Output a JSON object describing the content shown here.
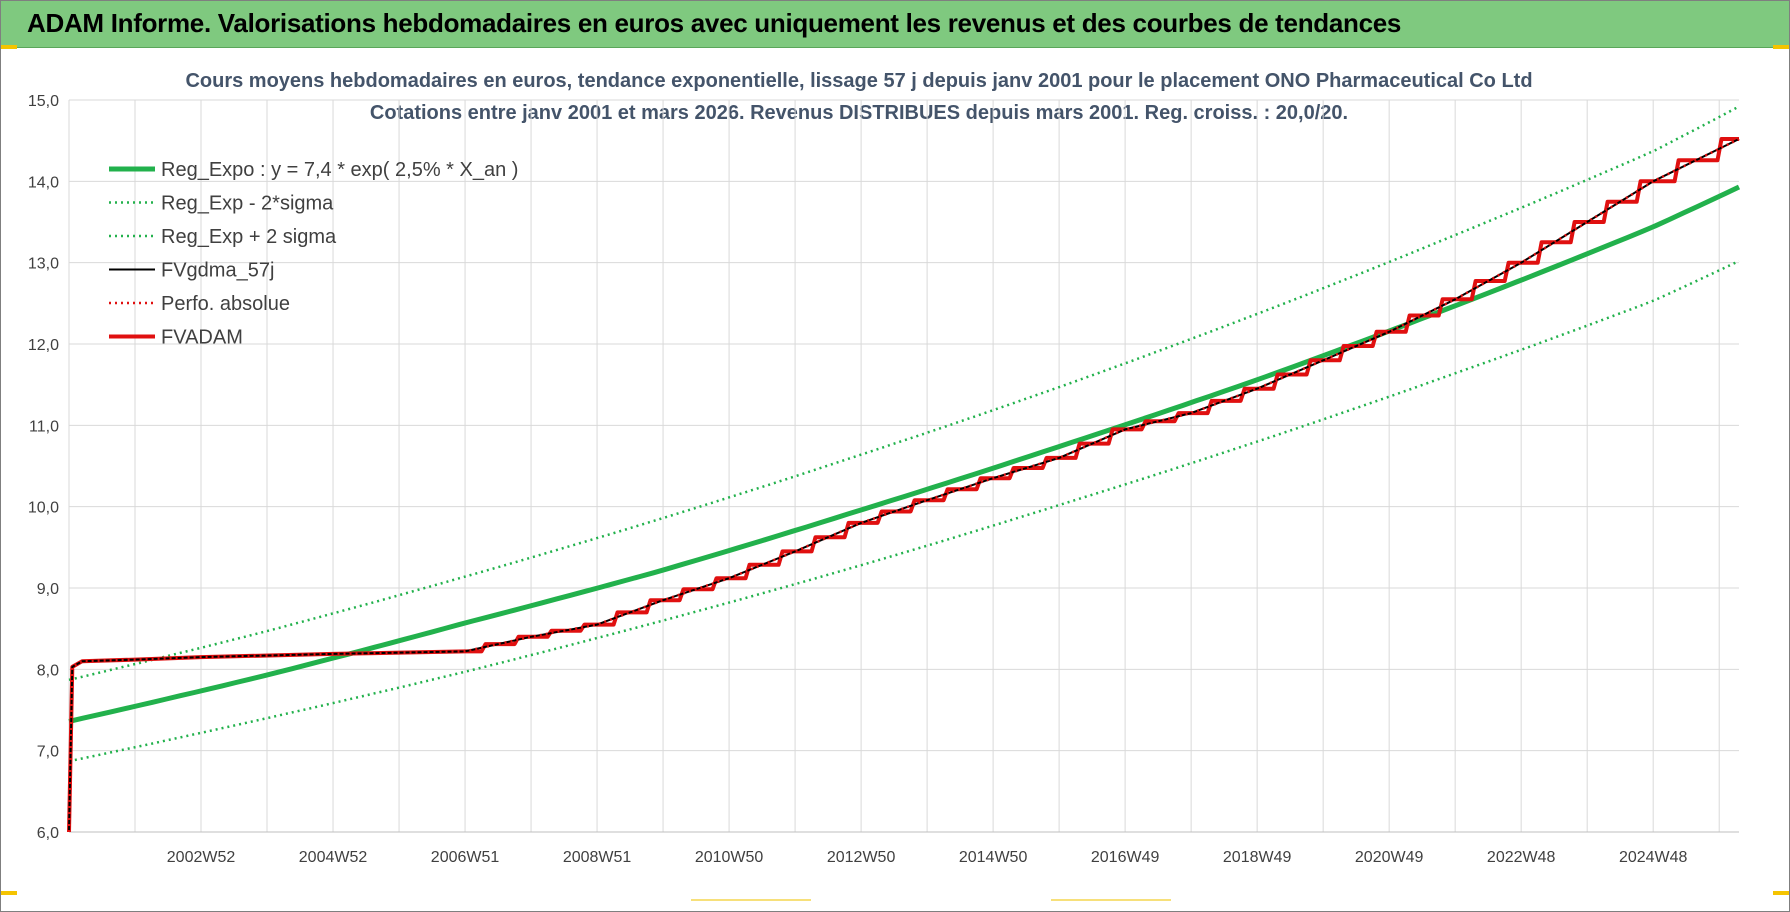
{
  "banner": {
    "title": "ADAM Informe. Valorisations hebdomadaires en euros avec uniquement les revenus et des courbes de tendances"
  },
  "colors": {
    "banner": "#7fc97f",
    "reg_expo": "#22b14c",
    "sigma": "#22b14c",
    "fvgdma": "#000000",
    "perfo": "#e01010",
    "fvadam": "#e01010",
    "grid": "#d9d9d9"
  },
  "chart_data": {
    "type": "line",
    "title": "Cours moyens hebdomadaires en euros, tendance exponentielle, lissage 57 j depuis janv 2001  pour le placement ONO Pharmaceutical Co Ltd",
    "subtitle": "Cotations entre janv 2001 et mars 2026. Revenus DISTRIBUES depuis mars 2001. Reg. croiss. : 20,0/20.",
    "xlabel": "",
    "ylabel": "",
    "ylim": [
      6,
      15
    ],
    "xlim": [
      2001.0,
      2026.3
    ],
    "yticks": [
      "6,0",
      "7,0",
      "8,0",
      "9,0",
      "10,0",
      "11,0",
      "12,0",
      "13,0",
      "14,0",
      "15,0"
    ],
    "xticks": [
      {
        "label": "2002W52",
        "x": 2003.0
      },
      {
        "label": "2004W52",
        "x": 2005.0
      },
      {
        "label": "2006W51",
        "x": 2007.0
      },
      {
        "label": "2008W51",
        "x": 2009.0
      },
      {
        "label": "2010W50",
        "x": 2011.0
      },
      {
        "label": "2012W50",
        "x": 2013.0
      },
      {
        "label": "2014W50",
        "x": 2015.0
      },
      {
        "label": "2016W49",
        "x": 2017.0
      },
      {
        "label": "2018W49",
        "x": 2019.0
      },
      {
        "label": "2020W49",
        "x": 2021.0
      },
      {
        "label": "2022W48",
        "x": 2023.0
      },
      {
        "label": "2024W48",
        "x": 2025.0
      }
    ],
    "grid": true,
    "legend_position": "top-left",
    "series": [
      {
        "name": "Reg_Expo : y = 7,4 * exp( 2,5% *  X_an )",
        "style": "solid-thick",
        "color": "#22b14c",
        "x": [
          2001.0,
          2004.0,
          2007.0,
          2010.0,
          2013.0,
          2016.0,
          2019.0,
          2022.0,
          2025.0,
          2026.3
        ],
        "y": [
          7.36,
          7.93,
          8.57,
          9.22,
          9.96,
          10.74,
          11.56,
          12.47,
          13.44,
          13.93
        ]
      },
      {
        "name": "Reg_Exp - 2*sigma",
        "style": "dotted",
        "color": "#22b14c",
        "x": [
          2001.0,
          2004.0,
          2007.0,
          2010.0,
          2013.0,
          2016.0,
          2019.0,
          2022.0,
          2025.0,
          2026.3
        ],
        "y": [
          6.87,
          7.4,
          7.97,
          8.6,
          9.28,
          10.02,
          10.8,
          11.64,
          12.53,
          13.02
        ]
      },
      {
        "name": "Reg_Exp + 2 sigma",
        "style": "dotted",
        "color": "#22b14c",
        "x": [
          2001.0,
          2004.0,
          2007.0,
          2010.0,
          2013.0,
          2016.0,
          2019.0,
          2022.0,
          2025.0,
          2026.3
        ],
        "y": [
          7.87,
          8.47,
          9.14,
          9.86,
          10.64,
          11.47,
          12.37,
          13.34,
          14.37,
          14.92
        ]
      },
      {
        "name": "FVgdma_57j",
        "style": "solid-thin",
        "color": "#000000",
        "x": [
          2001.0,
          2001.05,
          2001.2,
          2002.0,
          2003.0,
          2005.0,
          2007.0,
          2008.0,
          2009.0,
          2010.0,
          2011.0,
          2012.0,
          2013.0,
          2014.0,
          2015.0,
          2016.0,
          2017.0,
          2018.0,
          2019.0,
          2020.0,
          2021.0,
          2022.0,
          2023.0,
          2024.0,
          2025.0,
          2026.3
        ],
        "y": [
          6.0,
          8.03,
          8.1,
          8.12,
          8.15,
          8.19,
          8.22,
          8.4,
          8.55,
          8.85,
          9.12,
          9.45,
          9.8,
          10.08,
          10.35,
          10.6,
          10.95,
          11.15,
          11.45,
          11.8,
          12.15,
          12.55,
          13.0,
          13.5,
          14.0,
          14.52
        ]
      },
      {
        "name": "Perfo. absolue",
        "style": "dotted",
        "color": "#e01010",
        "x": [
          2001.0,
          2001.05,
          2001.2,
          2002.0,
          2003.0,
          2005.0,
          2007.0,
          2008.0,
          2009.0,
          2010.0,
          2011.0,
          2012.0,
          2013.0,
          2014.0,
          2015.0,
          2016.0,
          2017.0,
          2018.0,
          2019.0,
          2020.0,
          2021.0,
          2022.0,
          2023.0,
          2024.0,
          2025.0,
          2026.3
        ],
        "y": [
          6.0,
          8.03,
          8.1,
          8.12,
          8.15,
          8.19,
          8.22,
          8.4,
          8.55,
          8.85,
          9.12,
          9.45,
          9.8,
          10.08,
          10.35,
          10.6,
          10.95,
          11.15,
          11.45,
          11.8,
          12.15,
          12.55,
          13.0,
          13.5,
          14.0,
          14.52
        ]
      },
      {
        "name": "FVADAM",
        "style": "step-thick",
        "color": "#e01010",
        "x": [
          2001.0,
          2001.05,
          2001.2,
          2002.0,
          2003.0,
          2005.0,
          2007.0,
          2008.0,
          2009.0,
          2010.0,
          2011.0,
          2012.0,
          2013.0,
          2014.0,
          2015.0,
          2016.0,
          2017.0,
          2018.0,
          2019.0,
          2020.0,
          2021.0,
          2022.0,
          2023.0,
          2024.0,
          2025.0,
          2026.3
        ],
        "y": [
          6.0,
          8.03,
          8.1,
          8.12,
          8.15,
          8.19,
          8.22,
          8.4,
          8.55,
          8.85,
          9.12,
          9.45,
          9.8,
          10.08,
          10.35,
          10.6,
          10.95,
          11.15,
          11.45,
          11.8,
          12.15,
          12.55,
          13.0,
          13.5,
          14.0,
          14.52
        ]
      }
    ]
  }
}
